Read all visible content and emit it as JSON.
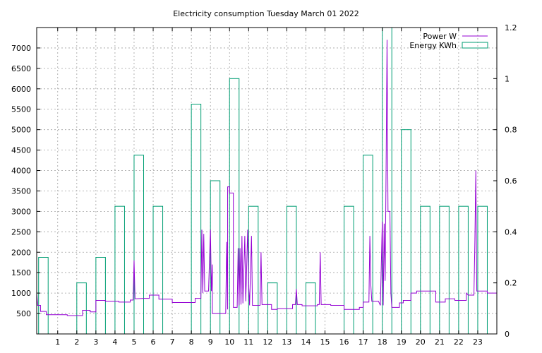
{
  "chart_data": {
    "type": "line",
    "title": "Electricity consumption Tuesday March 01 2022",
    "xlabel": "",
    "ylabel": "",
    "y2label": "",
    "xlim": [
      -0.1,
      24.0
    ],
    "ylim": [
      0,
      7500
    ],
    "y2lim": [
      0,
      1.2
    ],
    "x_ticks": [
      1,
      2,
      3,
      4,
      5,
      6,
      7,
      8,
      9,
      10,
      11,
      12,
      13,
      14,
      15,
      16,
      17,
      18,
      19,
      20,
      21,
      22,
      23
    ],
    "y_ticks": [
      500,
      1000,
      1500,
      2000,
      2500,
      3000,
      3500,
      4000,
      4500,
      5000,
      5500,
      6000,
      6500,
      7000
    ],
    "y2_ticks": [
      0,
      0.2,
      0.4,
      0.6,
      0.8,
      1,
      1.2
    ],
    "grid": true,
    "legend_position": "top-right",
    "series": [
      {
        "name": "Power W",
        "axis": "y",
        "color": "#9400d3",
        "points": [
          [
            -0.1,
            1000
          ],
          [
            -0.05,
            700
          ],
          [
            0.1,
            700
          ],
          [
            0.1,
            550
          ],
          [
            0.4,
            550
          ],
          [
            0.4,
            470
          ],
          [
            1.5,
            470
          ],
          [
            1.5,
            450
          ],
          [
            2.3,
            450
          ],
          [
            2.3,
            580
          ],
          [
            2.7,
            580
          ],
          [
            2.7,
            540
          ],
          [
            3.0,
            540
          ],
          [
            3.0,
            820
          ],
          [
            3.5,
            820
          ],
          [
            3.5,
            800
          ],
          [
            4.2,
            800
          ],
          [
            4.2,
            780
          ],
          [
            4.8,
            780
          ],
          [
            4.8,
            830
          ],
          [
            4.95,
            830
          ],
          [
            5.0,
            1800
          ],
          [
            5.05,
            860
          ],
          [
            5.5,
            870
          ],
          [
            5.8,
            870
          ],
          [
            5.8,
            950
          ],
          [
            6.3,
            950
          ],
          [
            6.3,
            850
          ],
          [
            7.0,
            850
          ],
          [
            7.0,
            770
          ],
          [
            8.2,
            770
          ],
          [
            8.2,
            870
          ],
          [
            8.5,
            870
          ],
          [
            8.55,
            2550
          ],
          [
            8.6,
            1000
          ],
          [
            8.65,
            2450
          ],
          [
            8.7,
            1050
          ],
          [
            8.9,
            1050
          ],
          [
            9.0,
            2550
          ],
          [
            9.05,
            1050
          ],
          [
            9.1,
            1700
          ],
          [
            9.1,
            500
          ],
          [
            9.8,
            500
          ],
          [
            9.85,
            2250
          ],
          [
            9.9,
            600
          ],
          [
            9.9,
            3600
          ],
          [
            10.0,
            3600
          ],
          [
            10.0,
            3450
          ],
          [
            10.2,
            3450
          ],
          [
            10.2,
            650
          ],
          [
            10.4,
            650
          ],
          [
            10.45,
            2100
          ],
          [
            10.5,
            700
          ],
          [
            10.55,
            2100
          ],
          [
            10.6,
            720
          ],
          [
            10.65,
            2400
          ],
          [
            10.7,
            750
          ],
          [
            10.8,
            2400
          ],
          [
            10.85,
            800
          ],
          [
            10.95,
            2550
          ],
          [
            11.0,
            1200
          ],
          [
            11.05,
            700
          ],
          [
            11.15,
            2400
          ],
          [
            11.2,
            700
          ],
          [
            11.6,
            700
          ],
          [
            11.65,
            2000
          ],
          [
            11.7,
            720
          ],
          [
            12.2,
            720
          ],
          [
            12.2,
            600
          ],
          [
            12.5,
            600
          ],
          [
            12.5,
            620
          ],
          [
            13.3,
            620
          ],
          [
            13.3,
            720
          ],
          [
            13.45,
            720
          ],
          [
            13.5,
            1100
          ],
          [
            13.55,
            720
          ],
          [
            13.8,
            720
          ],
          [
            13.8,
            690
          ],
          [
            14.6,
            690
          ],
          [
            14.6,
            720
          ],
          [
            14.7,
            720
          ],
          [
            14.75,
            2000
          ],
          [
            14.8,
            720
          ],
          [
            15.3,
            720
          ],
          [
            15.3,
            700
          ],
          [
            16.0,
            700
          ],
          [
            16.0,
            600
          ],
          [
            16.8,
            600
          ],
          [
            16.8,
            650
          ],
          [
            17.0,
            650
          ],
          [
            17.0,
            780
          ],
          [
            17.3,
            780
          ],
          [
            17.35,
            2400
          ],
          [
            17.4,
            1200
          ],
          [
            17.45,
            800
          ],
          [
            17.8,
            800
          ],
          [
            17.9,
            700
          ],
          [
            18.0,
            2750
          ],
          [
            18.05,
            700
          ],
          [
            18.1,
            2700
          ],
          [
            18.15,
            1300
          ],
          [
            18.2,
            4050
          ],
          [
            18.25,
            7200
          ],
          [
            18.3,
            3000
          ],
          [
            18.4,
            3000
          ],
          [
            18.45,
            1000
          ],
          [
            18.5,
            650
          ],
          [
            18.9,
            650
          ],
          [
            18.9,
            760
          ],
          [
            19.1,
            760
          ],
          [
            19.1,
            820
          ],
          [
            19.5,
            820
          ],
          [
            19.5,
            1000
          ],
          [
            19.8,
            1000
          ],
          [
            19.8,
            1050
          ],
          [
            20.8,
            1050
          ],
          [
            20.8,
            780
          ],
          [
            21.3,
            780
          ],
          [
            21.3,
            860
          ],
          [
            21.8,
            860
          ],
          [
            21.8,
            820
          ],
          [
            22.4,
            820
          ],
          [
            22.4,
            1000
          ],
          [
            22.5,
            950
          ],
          [
            22.8,
            950
          ],
          [
            22.85,
            2250
          ],
          [
            22.9,
            4000
          ],
          [
            22.95,
            1050
          ],
          [
            23.5,
            1050
          ],
          [
            23.5,
            1000
          ],
          [
            24.0,
            1000
          ],
          [
            24.0,
            900
          ]
        ]
      },
      {
        "name": "Energy KWh",
        "axis": "y2",
        "color": "#009e73",
        "bars": [
          [
            0,
            0.3
          ],
          [
            2,
            0.2
          ],
          [
            3,
            0.3
          ],
          [
            4,
            0.5
          ],
          [
            5,
            0.7
          ],
          [
            6,
            0.5
          ],
          [
            8,
            0.9
          ],
          [
            9,
            0.6
          ],
          [
            10,
            1.0
          ],
          [
            11,
            0.5
          ],
          [
            12,
            0.2
          ],
          [
            13,
            0.5
          ],
          [
            14,
            0.2
          ],
          [
            16,
            0.5
          ],
          [
            17,
            0.7
          ],
          [
            18,
            1.2
          ],
          [
            19,
            0.8
          ],
          [
            20,
            0.5
          ],
          [
            21,
            0.5
          ],
          [
            22,
            0.5
          ],
          [
            23,
            0.5
          ]
        ],
        "bar_width": 0.5
      }
    ]
  }
}
